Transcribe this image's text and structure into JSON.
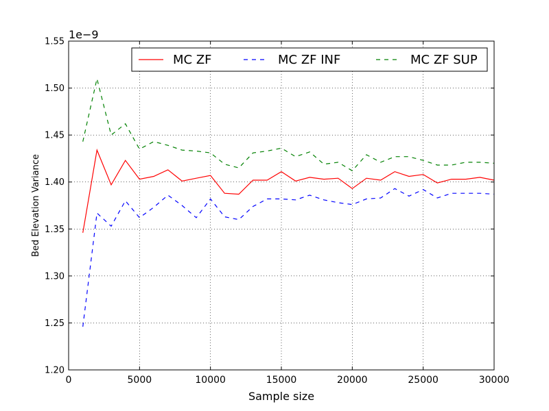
{
  "chart_data": {
    "type": "line",
    "xlabel": "Sample size",
    "ylabel": "Bed Elevation Variance",
    "y_offset_label": "1e−9",
    "xlim": [
      0,
      30000
    ],
    "ylim": [
      1.2,
      1.55
    ],
    "xticks": [
      0,
      5000,
      10000,
      15000,
      20000,
      25000,
      30000
    ],
    "xtick_labels": [
      "0",
      "5000",
      "10000",
      "15000",
      "20000",
      "25000",
      "30000"
    ],
    "yticks": [
      1.2,
      1.25,
      1.3,
      1.35,
      1.4,
      1.45,
      1.5,
      1.55
    ],
    "ytick_labels": [
      "1.20",
      "1.25",
      "1.30",
      "1.35",
      "1.40",
      "1.45",
      "1.50",
      "1.55"
    ],
    "grid": true,
    "legend_position": "top-right",
    "x": [
      1000,
      2000,
      3000,
      4000,
      5000,
      6000,
      7000,
      8000,
      9000,
      10000,
      11000,
      12000,
      13000,
      14000,
      15000,
      16000,
      17000,
      18000,
      19000,
      20000,
      21000,
      22000,
      23000,
      24000,
      25000,
      26000,
      27000,
      28000,
      29000,
      30000
    ],
    "series": [
      {
        "name": "MC ZF",
        "color": "#ff0000",
        "style": "solid",
        "values": [
          1.346,
          1.434,
          1.397,
          1.423,
          1.403,
          1.406,
          1.413,
          1.401,
          1.404,
          1.407,
          1.388,
          1.387,
          1.402,
          1.402,
          1.411,
          1.401,
          1.405,
          1.403,
          1.404,
          1.393,
          1.404,
          1.402,
          1.411,
          1.406,
          1.408,
          1.399,
          1.403,
          1.403,
          1.405,
          1.402
        ]
      },
      {
        "name": "MC ZF INF",
        "color": "#0000ff",
        "style": "dashed",
        "values": [
          1.246,
          1.367,
          1.353,
          1.38,
          1.362,
          1.373,
          1.386,
          1.375,
          1.362,
          1.382,
          1.363,
          1.36,
          1.374,
          1.382,
          1.382,
          1.381,
          1.386,
          1.381,
          1.378,
          1.376,
          1.382,
          1.383,
          1.393,
          1.385,
          1.392,
          1.383,
          1.388,
          1.388,
          1.388,
          1.387
        ]
      },
      {
        "name": "MC ZF SUP",
        "color": "#008000",
        "style": "dashed",
        "values": [
          1.443,
          1.51,
          1.45,
          1.462,
          1.435,
          1.443,
          1.439,
          1.434,
          1.433,
          1.431,
          1.419,
          1.415,
          1.431,
          1.433,
          1.436,
          1.427,
          1.432,
          1.419,
          1.421,
          1.412,
          1.429,
          1.421,
          1.427,
          1.427,
          1.423,
          1.418,
          1.418,
          1.421,
          1.421,
          1.42
        ]
      }
    ]
  }
}
